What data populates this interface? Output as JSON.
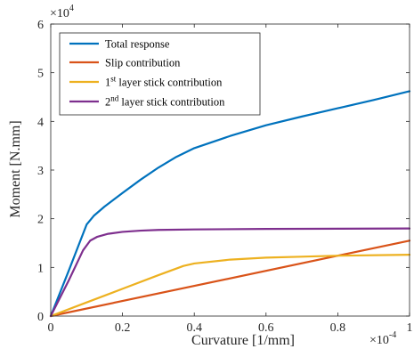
{
  "chart_data": {
    "type": "line",
    "xlabel": "Curvature [1/mm]",
    "ylabel": "Moment [N.mm]",
    "xlim": [
      0,
      0.0001
    ],
    "ylim": [
      0,
      60000
    ],
    "x_multiplier_label": {
      "base": "×10",
      "exp": "-4"
    },
    "y_multiplier_label": {
      "base": "×10",
      "exp": "4"
    },
    "x_ticks": [
      0,
      0.2,
      0.4,
      0.6,
      0.8,
      1
    ],
    "y_ticks": [
      0,
      1,
      2,
      3,
      4,
      5,
      6
    ],
    "grid": false,
    "legend_position": "top-left",
    "series": [
      {
        "name": "Total response",
        "color": "#0072BD",
        "x": [
          0,
          5e-06,
          8e-06,
          1e-05,
          1.2e-05,
          1.5e-05,
          2e-05,
          2.5e-05,
          3e-05,
          3.5e-05,
          4e-05,
          5e-05,
          6e-05,
          7e-05,
          8e-05,
          9e-05,
          0.0001
        ],
        "y": [
          0,
          9300,
          15000,
          18800,
          20600,
          22500,
          25300,
          28000,
          30500,
          32700,
          34500,
          37000,
          39200,
          41000,
          42700,
          44400,
          46200
        ]
      },
      {
        "name": "Slip contribution",
        "color": "#D95319",
        "x": [
          0,
          0.0001
        ],
        "y": [
          0,
          15500
        ]
      },
      {
        "name": "1st layer stick contribution",
        "name_parts": {
          "pre": "1",
          "sup": "st",
          "post": " layer stick contribution"
        },
        "color": "#EDB120",
        "x": [
          0,
          1e-05,
          2e-05,
          3e-05,
          3.7e-05,
          4e-05,
          5e-05,
          6e-05,
          7e-05,
          8e-05,
          0.0001
        ],
        "y": [
          0,
          2800,
          5600,
          8400,
          10300,
          10800,
          11600,
          12000,
          12200,
          12400,
          12600
        ]
      },
      {
        "name": "2nd layer stick contribution",
        "name_parts": {
          "pre": "2",
          "sup": "nd",
          "post": " layer stick contribution"
        },
        "color": "#7E2F8E",
        "x": [
          0,
          5e-06,
          9e-06,
          1.1e-05,
          1.3e-05,
          1.6e-05,
          2e-05,
          2.5e-05,
          3e-05,
          4e-05,
          6e-05,
          8e-05,
          0.0001
        ],
        "y": [
          0,
          7300,
          13500,
          15500,
          16300,
          16900,
          17300,
          17550,
          17700,
          17800,
          17900,
          17950,
          18000
        ]
      }
    ]
  }
}
